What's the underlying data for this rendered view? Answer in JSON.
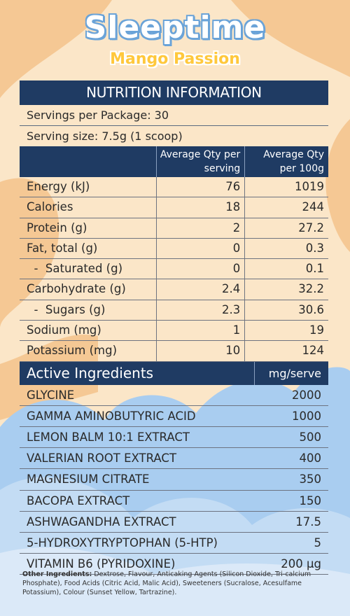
{
  "product": {
    "name": "Sleeptime",
    "flavour": "Mango Passion"
  },
  "nutrition": {
    "heading": "NUTRITION INFORMATION",
    "servings_per_package": "Servings per Package: 30",
    "serving_size": "Serving size: 7.5g (1 scoop)",
    "col_per_serving": "Average Qty per serving",
    "col_per_100g": "Average Qty per 100g",
    "rows": [
      {
        "label": "Energy (kJ)",
        "per_serving": "76",
        "per_100g": "1019"
      },
      {
        "label": "Calories",
        "per_serving": "18",
        "per_100g": "244"
      },
      {
        "label": "Protein (g)",
        "per_serving": "2",
        "per_100g": "27.2"
      },
      {
        "label": "Fat, total (g)",
        "per_serving": "0",
        "per_100g": "0.3"
      },
      {
        "label": "  -  Saturated (g)",
        "per_serving": "0",
        "per_100g": "0.1"
      },
      {
        "label": "Carbohydrate (g)",
        "per_serving": "2.4",
        "per_100g": "32.2"
      },
      {
        "label": "  -  Sugars (g)",
        "per_serving": "2.3",
        "per_100g": "30.6"
      },
      {
        "label": "Sodium (mg)",
        "per_serving": "1",
        "per_100g": "19"
      },
      {
        "label": "Potassium (mg)",
        "per_serving": "10",
        "per_100g": "124"
      }
    ]
  },
  "active": {
    "heading": "Active Ingredients",
    "unit_heading": "mg/serve",
    "rows": [
      {
        "name": "GLYCINE",
        "amount": "2000"
      },
      {
        "name": "GAMMA AMINOBUTYRIC ACID",
        "amount": "1000"
      },
      {
        "name": "LEMON BALM 10:1 EXTRACT",
        "amount": "500"
      },
      {
        "name": "VALERIAN ROOT EXTRACT",
        "amount": "400"
      },
      {
        "name": "MAGNESIUM CITRATE",
        "amount": "350"
      },
      {
        "name": "BACOPA EXTRACT",
        "amount": "150"
      },
      {
        "name": "ASHWAGANDHA EXTRACT",
        "amount": "17.5"
      },
      {
        "name": "5-HYDROXYTRYPTOPHAN (5-HTP)",
        "amount": "5"
      },
      {
        "name": "VITAMIN B6 (PYRIDOXINE)",
        "amount": "200 µg"
      }
    ]
  },
  "other_ingredients": {
    "label": "Other Ingredients:",
    "text": " Dextrose, Flavour, Anticaking Agents (Silicon Dioxide, Tri-calcium Phosphate), Food Acids (Citric Acid, Malic Acid), Sweeteners (Sucralose, Acesulfame Potassium), Colour (Sunset Yellow, Tartrazine)."
  },
  "colors": {
    "band": "#1f3b63",
    "peach_light": "#fbe6c8",
    "peach_dark": "#f5c894",
    "cloud_blue": "#a9cdf0",
    "title_blue": "#6aa3d8",
    "flavour_yellow": "#ffc83c"
  }
}
